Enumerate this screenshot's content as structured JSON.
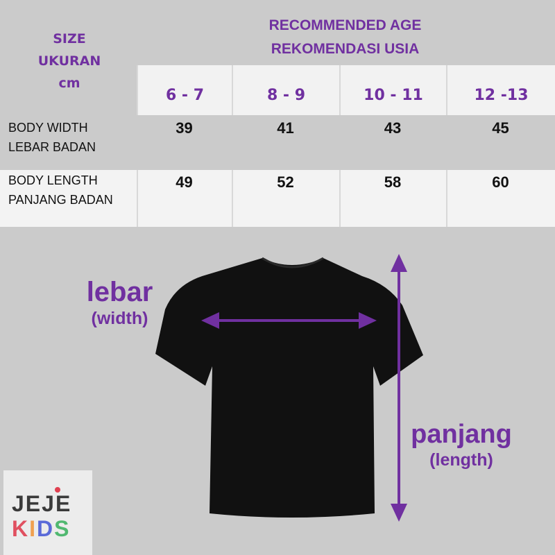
{
  "size_header": {
    "line1": "SIZE",
    "line2": "UKURAN",
    "line3": "cm"
  },
  "age_header": {
    "line1": "RECOMMENDED AGE",
    "line2": "REKOMENDASI USIA"
  },
  "ages": [
    "6 - 7",
    "8 - 9",
    "10 - 11",
    "12 -13"
  ],
  "rows": [
    {
      "label1": "BODY WIDTH",
      "label2": "LEBAR BADAN",
      "values": [
        "39",
        "41",
        "43",
        "45"
      ]
    },
    {
      "label1": "BODY LENGTH",
      "label2": "PANJANG BADAN",
      "values": [
        "49",
        "52",
        "58",
        "60"
      ]
    }
  ],
  "annotations": {
    "width_main": "lebar",
    "width_sub": "(width)",
    "length_main": "panjang",
    "length_sub": "(length)"
  },
  "logo": {
    "line1": "JEJE",
    "line2": "KIDS"
  },
  "colors": {
    "accent": "#7030a0",
    "background": "#cbcbcb",
    "shirt": "#111111"
  }
}
